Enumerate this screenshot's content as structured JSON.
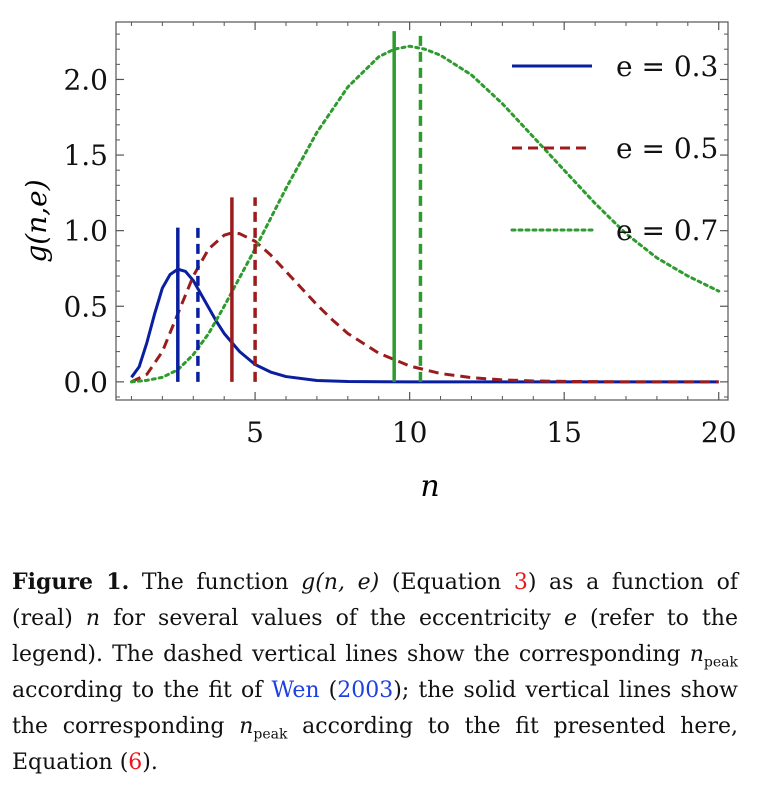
{
  "chart_data": {
    "type": "line",
    "title": "",
    "xlabel": "n",
    "ylabel": "g(n,e)",
    "xlim": [
      0.5,
      20.3
    ],
    "ylim": [
      -0.12,
      2.38
    ],
    "x_ticks": [
      5,
      10,
      15,
      20
    ],
    "x_tick_labels": [
      "5",
      "10",
      "15",
      "20"
    ],
    "y_ticks": [
      0.0,
      0.5,
      1.0,
      1.5,
      2.0
    ],
    "y_tick_labels": [
      "0.0",
      "0.5",
      "1.0",
      "1.5",
      "2.0"
    ],
    "legend_position": "top-right",
    "series": [
      {
        "name": "e = 0.3",
        "color": "#0a1fa0",
        "style": "solid",
        "points": [
          [
            1,
            0.03
          ],
          [
            1.25,
            0.1
          ],
          [
            1.5,
            0.26
          ],
          [
            1.75,
            0.45
          ],
          [
            2,
            0.62
          ],
          [
            2.25,
            0.71
          ],
          [
            2.5,
            0.745
          ],
          [
            2.75,
            0.73
          ],
          [
            3,
            0.67
          ],
          [
            3.25,
            0.58
          ],
          [
            3.5,
            0.49
          ],
          [
            3.75,
            0.4
          ],
          [
            4,
            0.32
          ],
          [
            4.5,
            0.2
          ],
          [
            5,
            0.115
          ],
          [
            5.5,
            0.065
          ],
          [
            6,
            0.035
          ],
          [
            7,
            0.009
          ],
          [
            8,
            0.002
          ],
          [
            10,
            0.0
          ],
          [
            15,
            0.0
          ],
          [
            20,
            0.0
          ]
        ]
      },
      {
        "name": "e = 0.5",
        "color": "#9b1c1c",
        "style": "dashed",
        "points": [
          [
            1,
            0.0
          ],
          [
            1.5,
            0.05
          ],
          [
            2,
            0.2
          ],
          [
            2.5,
            0.45
          ],
          [
            3,
            0.7
          ],
          [
            3.5,
            0.88
          ],
          [
            4,
            0.97
          ],
          [
            4.25,
            0.985
          ],
          [
            4.5,
            0.98
          ],
          [
            5,
            0.93
          ],
          [
            5.5,
            0.84
          ],
          [
            6,
            0.73
          ],
          [
            6.5,
            0.62
          ],
          [
            7,
            0.51
          ],
          [
            7.5,
            0.41
          ],
          [
            8,
            0.32
          ],
          [
            9,
            0.19
          ],
          [
            10,
            0.105
          ],
          [
            11,
            0.055
          ],
          [
            12,
            0.028
          ],
          [
            13,
            0.013
          ],
          [
            14,
            0.006
          ],
          [
            15,
            0.003
          ],
          [
            17,
            0.0
          ],
          [
            20,
            0.0
          ]
        ]
      },
      {
        "name": "e = 0.7",
        "color": "#2e9b2e",
        "style": "dotted",
        "points": [
          [
            1,
            0.0
          ],
          [
            1.5,
            0.01
          ],
          [
            2,
            0.03
          ],
          [
            2.5,
            0.08
          ],
          [
            3,
            0.18
          ],
          [
            3.5,
            0.32
          ],
          [
            4,
            0.5
          ],
          [
            5,
            0.88
          ],
          [
            6,
            1.28
          ],
          [
            7,
            1.65
          ],
          [
            8,
            1.95
          ],
          [
            9,
            2.15
          ],
          [
            9.5,
            2.2
          ],
          [
            10,
            2.22
          ],
          [
            10.5,
            2.2
          ],
          [
            11,
            2.16
          ],
          [
            12,
            2.03
          ],
          [
            13,
            1.84
          ],
          [
            14,
            1.62
          ],
          [
            15,
            1.4
          ],
          [
            16,
            1.18
          ],
          [
            17,
            0.98
          ],
          [
            18,
            0.82
          ],
          [
            19,
            0.7
          ],
          [
            20,
            0.6
          ]
        ]
      }
    ],
    "vertical_lines": [
      {
        "series": "e = 0.3",
        "style": "solid",
        "x": 2.5,
        "y_top": 1.02
      },
      {
        "series": "e = 0.3",
        "style": "dashed",
        "x": 3.15,
        "y_top": 1.02
      },
      {
        "series": "e = 0.5",
        "style": "solid",
        "x": 4.25,
        "y_top": 1.22
      },
      {
        "series": "e = 0.5",
        "style": "dashed",
        "x": 5.0,
        "y_top": 1.22
      },
      {
        "series": "e = 0.7",
        "style": "solid",
        "x": 9.5,
        "y_top": 2.32
      },
      {
        "series": "e = 0.7",
        "style": "dashed",
        "x": 10.35,
        "y_top": 2.3
      }
    ]
  },
  "caption": {
    "label": "Figure 1.",
    "t1": " The function ",
    "m1": "g(n, e)",
    "t2": " (Equation ",
    "ref1": "3",
    "t3": ") as a function of (real) ",
    "m2": "n",
    "t4": " for several values of the eccentricity ",
    "m3": "e",
    "t5": " (refer to the legend).  The dashed vertical lines show the corresponding ",
    "m4": "n",
    "sub1": "peak",
    "t6": " according to the fit of ",
    "cite_name": "Wen",
    "t7": " (",
    "cite_year": "2003",
    "t8": "); the solid vertical lines show the corresponding ",
    "m5": "n",
    "sub2": "peak",
    "t9": " according to the fit presented here, Equation (",
    "ref2": "6",
    "t10": ")."
  }
}
